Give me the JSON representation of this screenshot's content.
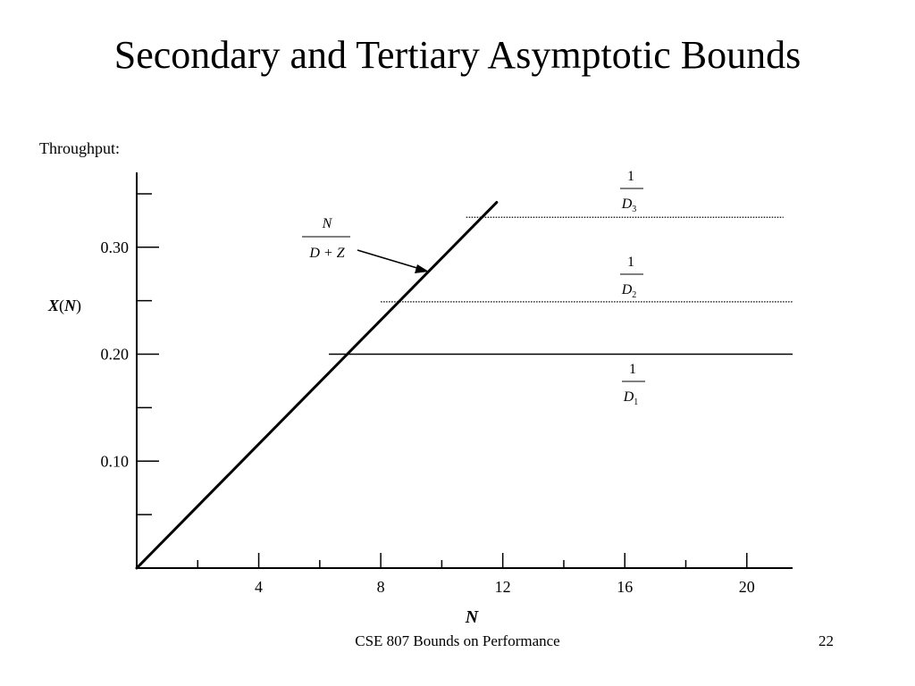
{
  "slide": {
    "title": "Secondary and Tertiary Asymptotic Bounds",
    "footer_text": "CSE 807  Bounds on Performance",
    "page_number": "22"
  },
  "chart_data": {
    "type": "line",
    "y_caption": "Throughput:",
    "ylabel": "X(N)",
    "ylabel_parts": {
      "main": "X",
      "open": "(",
      "arg": "N",
      "close": ")"
    },
    "xlabel": "N",
    "xlim": [
      0,
      21.5
    ],
    "ylim": [
      0,
      0.37
    ],
    "x_major_ticks": [
      4,
      8,
      12,
      16,
      20
    ],
    "x_minor_ticks": [
      2,
      6,
      10,
      14,
      18
    ],
    "y_major_ticks": [
      {
        "value": 0.1,
        "label": "0.10"
      },
      {
        "value": 0.2,
        "label": "0.20"
      },
      {
        "value": 0.3,
        "label": "0.30"
      }
    ],
    "y_minor_ticks": [
      0.05,
      0.15,
      0.25,
      0.35
    ],
    "grid": false,
    "series": [
      {
        "kind": "line",
        "style": "solid-thick",
        "x": [
          0,
          11.8
        ],
        "y": [
          0,
          0.342
        ],
        "label": {
          "numerator": "N",
          "denominator": "D + Z"
        },
        "color": "#000000"
      },
      {
        "kind": "hline",
        "style": "dotted",
        "y": 0.328,
        "x_range": [
          10.8,
          21.2
        ],
        "label": {
          "numerator": "1",
          "denominator": "D",
          "subscript": "3"
        },
        "color": "#000000"
      },
      {
        "kind": "hline",
        "style": "dotted",
        "y": 0.249,
        "x_range": [
          8.0,
          21.5
        ],
        "label": {
          "numerator": "1",
          "denominator": "D",
          "subscript": "2"
        },
        "color": "#000000"
      },
      {
        "kind": "hline",
        "style": "solid",
        "y": 0.2,
        "x_range": [
          6.3,
          21.5
        ],
        "label": {
          "numerator": "1",
          "denominator": "D",
          "subscript": "1"
        },
        "color": "#000000"
      }
    ]
  }
}
